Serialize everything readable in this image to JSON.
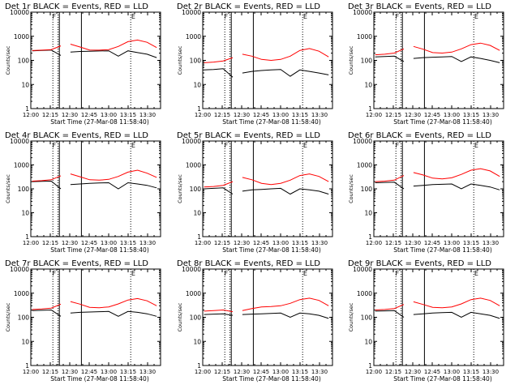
{
  "chart_data": [
    {
      "type": "line",
      "title": "Det 1r BLACK = Events, RED = LLD",
      "xlabel": "",
      "ylabel": "Counts/sec",
      "x_ticks": [
        "12:00",
        "12:15",
        "12:30",
        "12:45",
        "13:00",
        "13:15",
        "13:30"
      ],
      "y_ticks": [
        "1",
        "10",
        "100",
        "1000",
        "10000"
      ],
      "ylim": [
        1,
        10000
      ],
      "y_scale": "log",
      "markers": {
        "F": "12:18",
        "E": "13:19"
      },
      "series": [
        {
          "color": "#000000",
          "level": [
            250,
            258,
            270,
            160,
            220,
            235,
            240,
            245,
            250,
            150,
            250,
            210,
            180,
            130
          ]
        },
        {
          "color": "#ff0000",
          "level": [
            255,
            265,
            280,
            400,
            470,
            360,
            270,
            265,
            280,
            380,
            600,
            700,
            560,
            340
          ]
        }
      ]
    },
    {
      "type": "line",
      "title": "Det 2r BLACK = Events, RED = LLD",
      "xlabel": "",
      "ylabel": "Counts/sec",
      "x_ticks": [
        "12:00",
        "12:15",
        "12:30",
        "12:45",
        "13:00",
        "13:15",
        "13:30"
      ],
      "y_ticks": [
        "1",
        "10",
        "100",
        "1000",
        "10000"
      ],
      "ylim": [
        1,
        10000
      ],
      "y_scale": "log",
      "markers": {
        "F": "12:18",
        "E": "13:19"
      },
      "series": [
        {
          "color": "#000000",
          "level": [
            40,
            42,
            45,
            20,
            30,
            35,
            38,
            40,
            42,
            22,
            40,
            35,
            30,
            25
          ]
        },
        {
          "color": "#ff0000",
          "level": [
            80,
            85,
            95,
            130,
            180,
            150,
            110,
            100,
            110,
            150,
            260,
            310,
            240,
            140
          ]
        }
      ]
    },
    {
      "type": "line",
      "title": "Det 3r BLACK = Events, RED = LLD",
      "xlabel": "",
      "ylabel": "Counts/sec",
      "x_ticks": [
        "12:00",
        "12:15",
        "12:30",
        "12:45",
        "13:00",
        "13:15",
        "13:30"
      ],
      "y_ticks": [
        "1",
        "10",
        "100",
        "1000",
        "10000"
      ],
      "ylim": [
        1,
        10000
      ],
      "y_scale": "log",
      "markers": {
        "F": "12:18",
        "E": "13:19"
      },
      "series": [
        {
          "color": "#000000",
          "level": [
            140,
            145,
            150,
            90,
            120,
            130,
            135,
            140,
            145,
            90,
            140,
            120,
            100,
            80
          ]
        },
        {
          "color": "#ff0000",
          "level": [
            170,
            180,
            200,
            300,
            380,
            290,
            210,
            200,
            220,
            300,
            450,
            520,
            420,
            260
          ]
        }
      ]
    },
    {
      "type": "line",
      "title": "Det 4r BLACK = Events, RED = LLD",
      "xlabel": "",
      "ylabel": "Counts/sec",
      "x_ticks": [
        "12:00",
        "12:15",
        "12:30",
        "12:45",
        "13:00",
        "13:15",
        "13:30"
      ],
      "y_ticks": [
        "1",
        "10",
        "100",
        "1000",
        "10000"
      ],
      "ylim": [
        1,
        10000
      ],
      "y_scale": "log",
      "markers": {
        "F": "12:18",
        "E": "13:19"
      },
      "series": [
        {
          "color": "#000000",
          "level": [
            200,
            205,
            210,
            100,
            150,
            160,
            170,
            175,
            180,
            100,
            180,
            160,
            140,
            110
          ]
        },
        {
          "color": "#ff0000",
          "level": [
            210,
            220,
            240,
            350,
            420,
            320,
            240,
            230,
            250,
            330,
            500,
            600,
            450,
            300
          ]
        }
      ]
    },
    {
      "type": "line",
      "title": "Det 5r BLACK = Events, RED = LLD",
      "xlabel": "",
      "ylabel": "Counts/sec",
      "x_ticks": [
        "12:00",
        "12:15",
        "12:30",
        "12:45",
        "13:00",
        "13:15",
        "13:30"
      ],
      "y_ticks": [
        "1",
        "10",
        "100",
        "1000",
        "10000"
      ],
      "ylim": [
        1,
        10000
      ],
      "y_scale": "log",
      "markers": {
        "F": "12:18",
        "E": "13:19"
      },
      "series": [
        {
          "color": "#000000",
          "level": [
            100,
            105,
            110,
            60,
            80,
            90,
            95,
            100,
            105,
            60,
            100,
            90,
            80,
            60
          ]
        },
        {
          "color": "#ff0000",
          "level": [
            120,
            125,
            140,
            200,
            300,
            240,
            170,
            150,
            170,
            230,
            360,
            420,
            330,
            200
          ]
        }
      ]
    },
    {
      "type": "line",
      "title": "Det 6r BLACK = Events, RED = LLD",
      "xlabel": "",
      "ylabel": "Counts/sec",
      "x_ticks": [
        "12:00",
        "12:15",
        "12:30",
        "12:45",
        "13:00",
        "13:15",
        "13:30"
      ],
      "y_ticks": [
        "1",
        "10",
        "100",
        "1000",
        "10000"
      ],
      "ylim": [
        1,
        10000
      ],
      "y_scale": "log",
      "markers": {
        "F": "12:18",
        "E": "13:19"
      },
      "series": [
        {
          "color": "#000000",
          "level": [
            180,
            185,
            190,
            100,
            130,
            140,
            150,
            155,
            160,
            100,
            160,
            140,
            120,
            90
          ]
        },
        {
          "color": "#ff0000",
          "level": [
            200,
            210,
            230,
            360,
            480,
            380,
            280,
            260,
            290,
            400,
            600,
            700,
            560,
            330
          ]
        }
      ]
    },
    {
      "type": "line",
      "title": "Det 7r BLACK = Events, RED = LLD",
      "xlabel": "",
      "ylabel": "Counts/sec",
      "x_ticks": [
        "12:00",
        "12:15",
        "12:30",
        "12:45",
        "13:00",
        "13:15",
        "13:30"
      ],
      "y_ticks": [
        "1",
        "10",
        "100",
        "1000",
        "10000"
      ],
      "ylim": [
        1,
        10000
      ],
      "y_scale": "log",
      "markers": {
        "F": "12:18",
        "E": "13:19"
      },
      "series": [
        {
          "color": "#000000",
          "level": [
            190,
            195,
            200,
            110,
            150,
            160,
            165,
            170,
            175,
            110,
            175,
            160,
            140,
            110
          ]
        },
        {
          "color": "#ff0000",
          "level": [
            210,
            220,
            240,
            350,
            450,
            350,
            260,
            250,
            270,
            360,
            520,
            600,
            480,
            300
          ]
        }
      ]
    },
    {
      "type": "line",
      "title": "Det 8r BLACK = Events, RED = LLD",
      "xlabel": "",
      "ylabel": "Counts/sec",
      "x_ticks": [
        "12:00",
        "12:15",
        "12:30",
        "12:45",
        "13:00",
        "13:15",
        "13:30"
      ],
      "y_ticks": [
        "1",
        "10",
        "100",
        "1000",
        "10000"
      ],
      "ylim": [
        1,
        10000
      ],
      "y_scale": "log",
      "markers": {
        "F": "12:18",
        "E": "13:19"
      },
      "series": [
        {
          "color": "#000000",
          "level": [
            130,
            135,
            140,
            120,
            130,
            135,
            140,
            145,
            150,
            100,
            150,
            140,
            120,
            90
          ]
        },
        {
          "color": "#ff0000",
          "level": [
            180,
            190,
            200,
            170,
            190,
            230,
            270,
            280,
            300,
            380,
            540,
            620,
            500,
            300
          ]
        }
      ]
    },
    {
      "type": "line",
      "title": "Det 9r BLACK = Events, RED = LLD",
      "xlabel": "",
      "ylabel": "Counts/sec",
      "x_ticks": [
        "12:00",
        "12:15",
        "12:30",
        "12:45",
        "13:00",
        "13:15",
        "13:30"
      ],
      "y_ticks": [
        "1",
        "10",
        "100",
        "1000",
        "10000"
      ],
      "ylim": [
        1,
        10000
      ],
      "y_scale": "log",
      "markers": {
        "F": "12:18",
        "E": "13:19"
      },
      "series": [
        {
          "color": "#000000",
          "level": [
            180,
            185,
            190,
            100,
            130,
            140,
            150,
            155,
            160,
            100,
            160,
            140,
            120,
            90
          ]
        },
        {
          "color": "#ff0000",
          "level": [
            200,
            210,
            230,
            340,
            440,
            340,
            260,
            250,
            270,
            360,
            540,
            620,
            500,
            300
          ]
        }
      ]
    }
  ],
  "x_title": "Start Time (27-Mar-08 11:58:40)"
}
